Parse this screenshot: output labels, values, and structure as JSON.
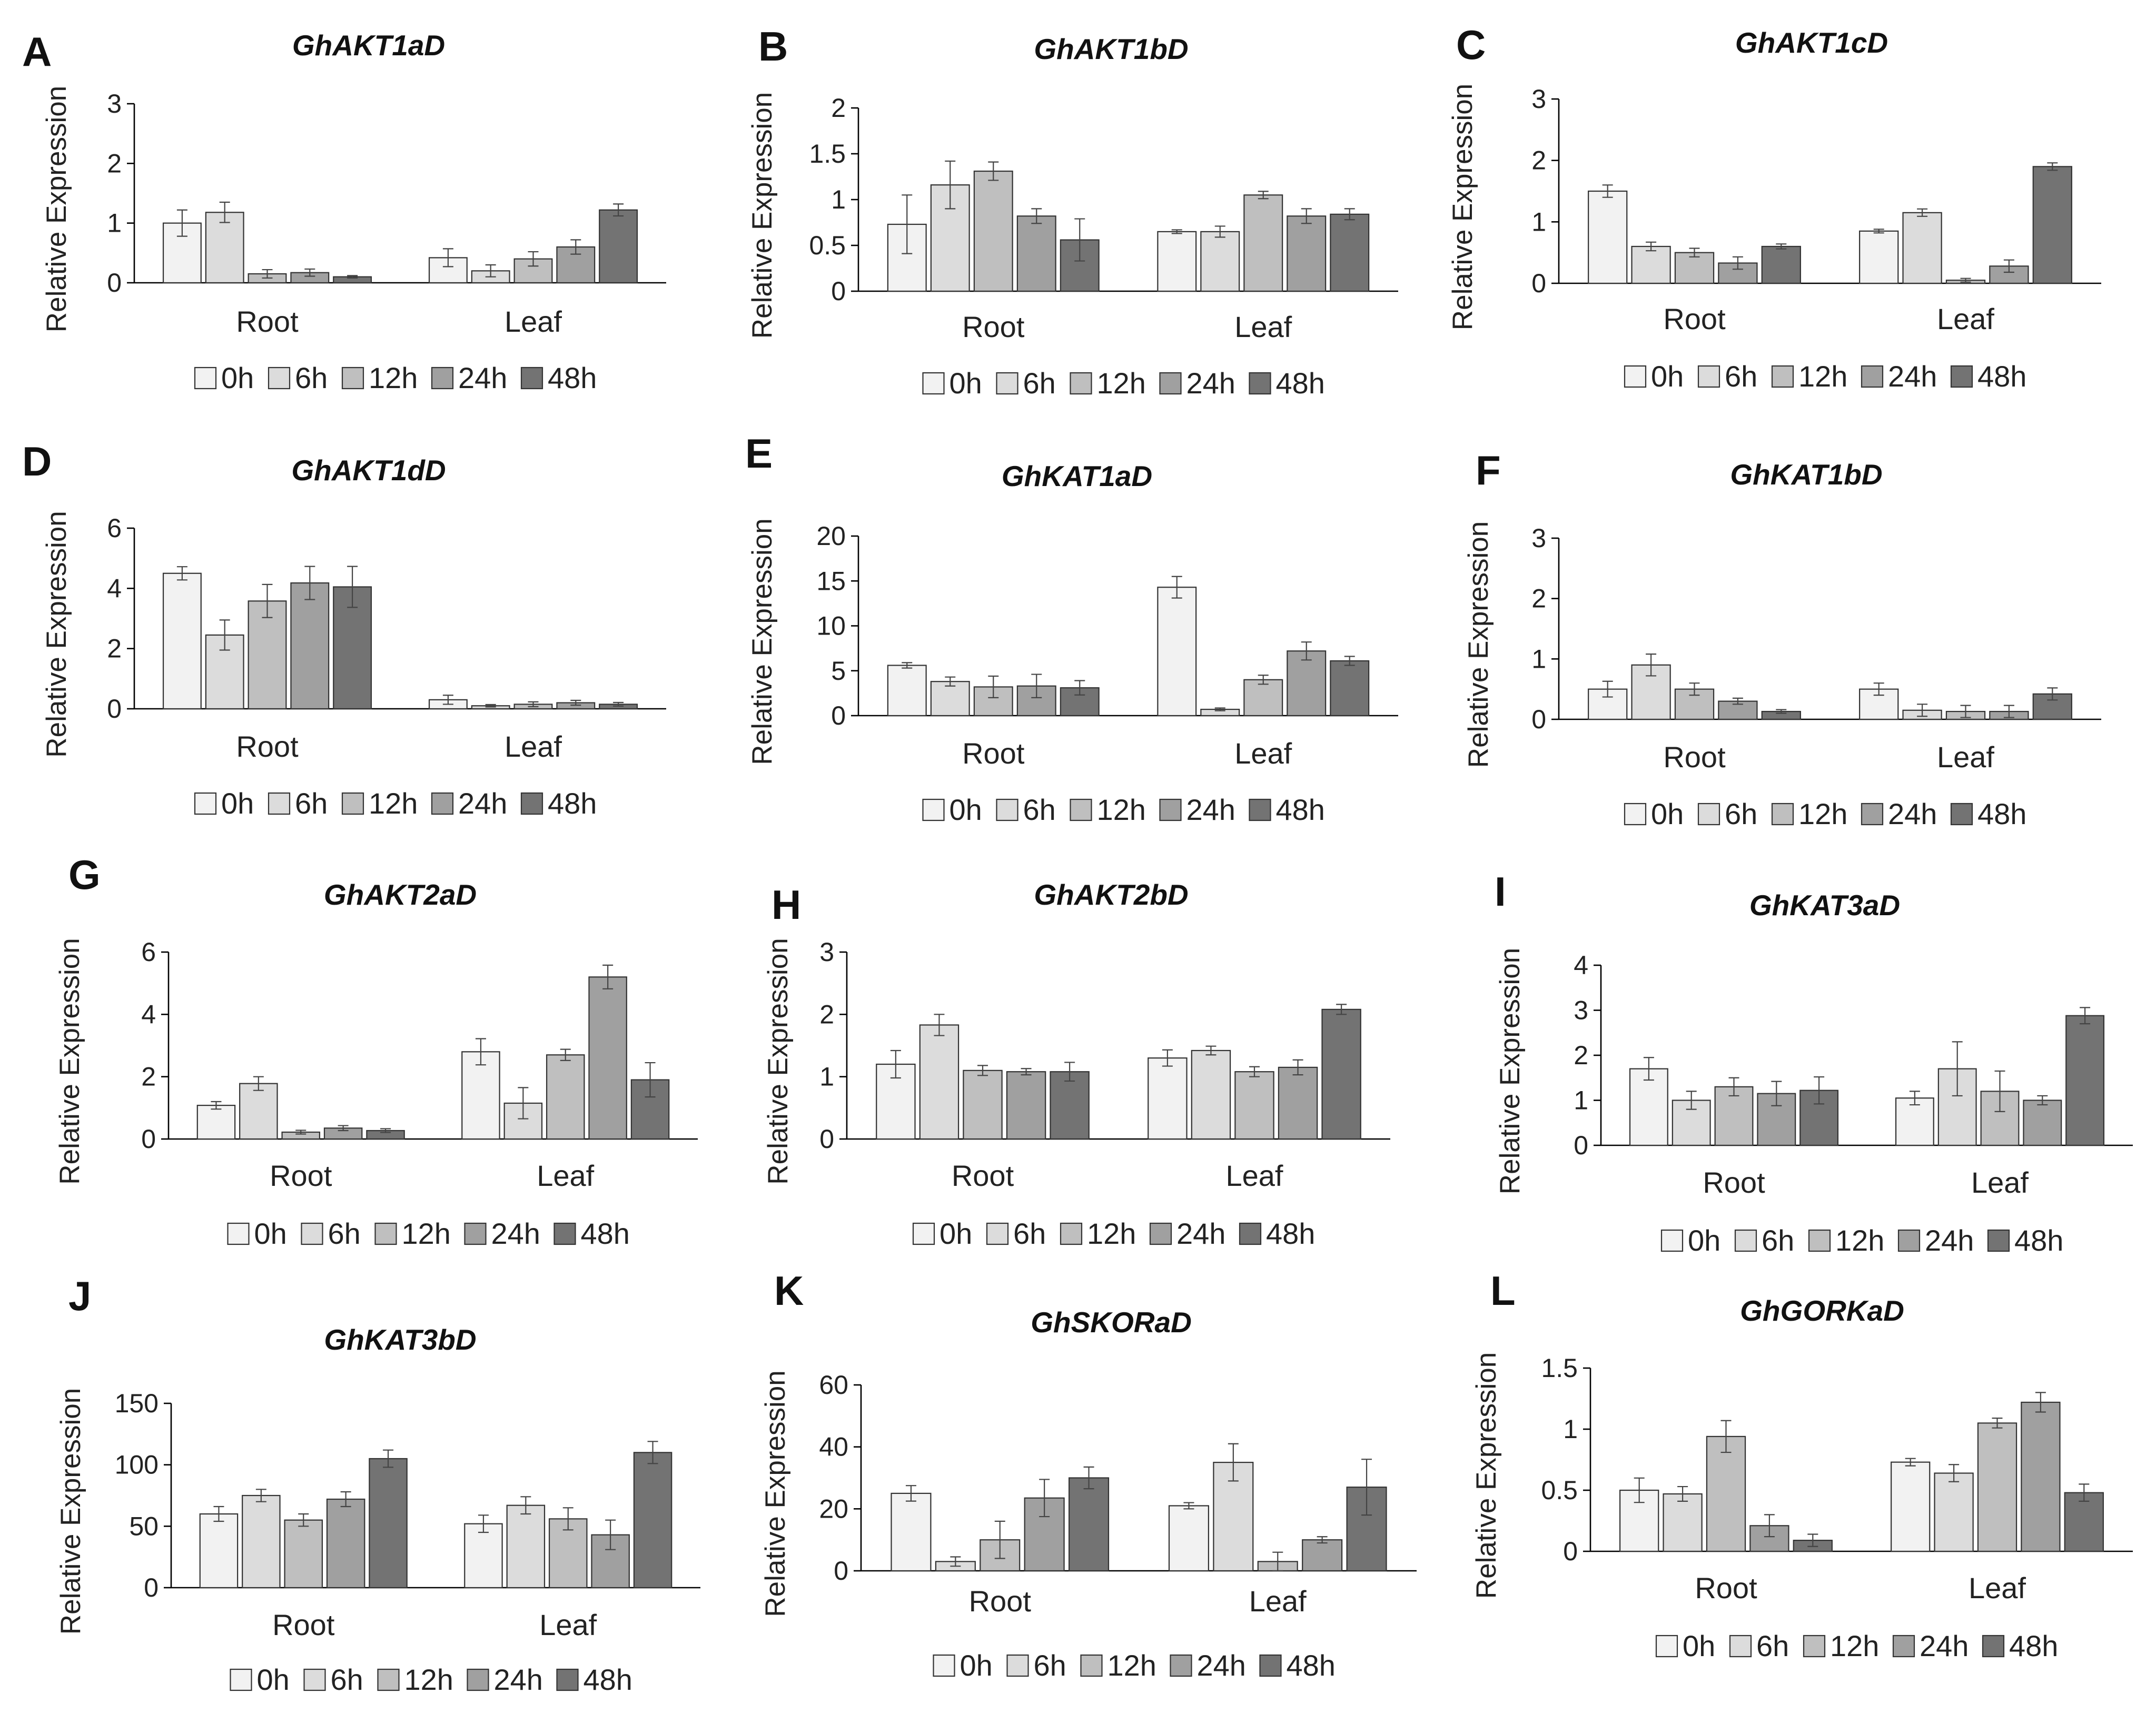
{
  "legend": [
    "0h",
    "6h",
    "12h",
    "24h",
    "48h"
  ],
  "colors": {
    "series": [
      "#f2f2f2",
      "#dcdcdc",
      "#bfbfbf",
      "#a0a0a0",
      "#737373"
    ],
    "stroke": "#333333",
    "axis": "#000000"
  },
  "chart_data": [
    {
      "type": "bar",
      "letter": "A",
      "title": "GhAKT1aD",
      "ylabel": "Relative Expression",
      "ylim": [
        0,
        3
      ],
      "yticks": [
        "0",
        "1",
        "2",
        "3"
      ],
      "categories": [
        "Root",
        "Leaf"
      ],
      "series": [
        {
          "name": "0h",
          "values": [
            1.0,
            0.42
          ],
          "errors": [
            0.22,
            0.15
          ]
        },
        {
          "name": "6h",
          "values": [
            1.18,
            0.2
          ],
          "errors": [
            0.17,
            0.1
          ]
        },
        {
          "name": "12h",
          "values": [
            0.15,
            0.4
          ],
          "errors": [
            0.07,
            0.12
          ]
        },
        {
          "name": "24h",
          "values": [
            0.17,
            0.6
          ],
          "errors": [
            0.06,
            0.12
          ]
        },
        {
          "name": "48h",
          "values": [
            0.1,
            1.22
          ],
          "errors": [
            0.02,
            0.1
          ]
        }
      ]
    },
    {
      "type": "bar",
      "letter": "B",
      "title": "GhAKT1bD",
      "ylabel": "Relative Expression",
      "ylim": [
        0,
        2
      ],
      "yticks": [
        "0",
        "0.5",
        "1",
        "1.5",
        "2"
      ],
      "categories": [
        "Root",
        "Leaf"
      ],
      "series": [
        {
          "name": "0h",
          "values": [
            0.73,
            0.65
          ],
          "errors": [
            0.32,
            0.02
          ]
        },
        {
          "name": "6h",
          "values": [
            1.16,
            0.65
          ],
          "errors": [
            0.26,
            0.06
          ]
        },
        {
          "name": "12h",
          "values": [
            1.31,
            1.05
          ],
          "errors": [
            0.1,
            0.04
          ]
        },
        {
          "name": "24h",
          "values": [
            0.82,
            0.82
          ],
          "errors": [
            0.08,
            0.08
          ]
        },
        {
          "name": "48h",
          "values": [
            0.56,
            0.84
          ],
          "errors": [
            0.23,
            0.06
          ]
        }
      ]
    },
    {
      "type": "bar",
      "letter": "C",
      "title": "GhAKT1cD",
      "ylabel": "Relative Expression",
      "ylim": [
        0,
        3
      ],
      "yticks": [
        "0",
        "1",
        "2",
        "3"
      ],
      "categories": [
        "Root",
        "Leaf"
      ],
      "series": [
        {
          "name": "0h",
          "values": [
            1.5,
            0.85
          ],
          "errors": [
            0.1,
            0.03
          ]
        },
        {
          "name": "6h",
          "values": [
            0.6,
            1.15
          ],
          "errors": [
            0.07,
            0.06
          ]
        },
        {
          "name": "12h",
          "values": [
            0.5,
            0.05
          ],
          "errors": [
            0.07,
            0.03
          ]
        },
        {
          "name": "24h",
          "values": [
            0.33,
            0.28
          ],
          "errors": [
            0.1,
            0.1
          ]
        },
        {
          "name": "48h",
          "values": [
            0.6,
            1.9
          ],
          "errors": [
            0.04,
            0.06
          ]
        }
      ]
    },
    {
      "type": "bar",
      "letter": "D",
      "title": "GhAKT1dD",
      "ylabel": "Relative Expression",
      "ylim": [
        0,
        6
      ],
      "yticks": [
        "0",
        "2",
        "4",
        "6"
      ],
      "categories": [
        "Root",
        "Leaf"
      ],
      "series": [
        {
          "name": "0h",
          "values": [
            4.5,
            0.3
          ],
          "errors": [
            0.22,
            0.15
          ]
        },
        {
          "name": "6h",
          "values": [
            2.45,
            0.1
          ],
          "errors": [
            0.5,
            0.04
          ]
        },
        {
          "name": "12h",
          "values": [
            3.58,
            0.15
          ],
          "errors": [
            0.55,
            0.08
          ]
        },
        {
          "name": "24h",
          "values": [
            4.18,
            0.2
          ],
          "errors": [
            0.55,
            0.08
          ]
        },
        {
          "name": "48h",
          "values": [
            4.05,
            0.15
          ],
          "errors": [
            0.68,
            0.06
          ]
        }
      ]
    },
    {
      "type": "bar",
      "letter": "E",
      "title": "GhKAT1aD",
      "ylabel": "Relative Expression",
      "ylim": [
        0,
        20
      ],
      "yticks": [
        "0",
        "5",
        "10",
        "15",
        "20"
      ],
      "categories": [
        "Root",
        "Leaf"
      ],
      "series": [
        {
          "name": "0h",
          "values": [
            5.6,
            14.3
          ],
          "errors": [
            0.3,
            1.2
          ]
        },
        {
          "name": "6h",
          "values": [
            3.8,
            0.7
          ],
          "errors": [
            0.5,
            0.15
          ]
        },
        {
          "name": "12h",
          "values": [
            3.2,
            4.0
          ],
          "errors": [
            1.2,
            0.5
          ]
        },
        {
          "name": "24h",
          "values": [
            3.3,
            7.2
          ],
          "errors": [
            1.3,
            1.0
          ]
        },
        {
          "name": "48h",
          "values": [
            3.1,
            6.1
          ],
          "errors": [
            0.8,
            0.5
          ]
        }
      ]
    },
    {
      "type": "bar",
      "letter": "F",
      "title": "GhKAT1bD",
      "ylabel": "Relative Expression",
      "ylim": [
        0,
        3
      ],
      "yticks": [
        "0",
        "1",
        "2",
        "3"
      ],
      "categories": [
        "Root",
        "Leaf"
      ],
      "series": [
        {
          "name": "0h",
          "values": [
            0.5,
            0.5
          ],
          "errors": [
            0.13,
            0.1
          ]
        },
        {
          "name": "6h",
          "values": [
            0.9,
            0.15
          ],
          "errors": [
            0.18,
            0.1
          ]
        },
        {
          "name": "12h",
          "values": [
            0.5,
            0.13
          ],
          "errors": [
            0.1,
            0.1
          ]
        },
        {
          "name": "24h",
          "values": [
            0.3,
            0.13
          ],
          "errors": [
            0.05,
            0.1
          ]
        },
        {
          "name": "48h",
          "values": [
            0.13,
            0.42
          ],
          "errors": [
            0.03,
            0.1
          ]
        }
      ]
    },
    {
      "type": "bar",
      "letter": "G",
      "title": "GhAKT2aD",
      "ylabel": "Relative Expression",
      "ylim": [
        0,
        6
      ],
      "yticks": [
        "0",
        "2",
        "4",
        "6"
      ],
      "categories": [
        "Root",
        "Leaf"
      ],
      "series": [
        {
          "name": "0h",
          "values": [
            1.08,
            2.8
          ],
          "errors": [
            0.12,
            0.42
          ]
        },
        {
          "name": "6h",
          "values": [
            1.78,
            1.15
          ],
          "errors": [
            0.22,
            0.5
          ]
        },
        {
          "name": "12h",
          "values": [
            0.22,
            2.7
          ],
          "errors": [
            0.06,
            0.18
          ]
        },
        {
          "name": "24h",
          "values": [
            0.35,
            5.2
          ],
          "errors": [
            0.08,
            0.38
          ]
        },
        {
          "name": "48h",
          "values": [
            0.27,
            1.9
          ],
          "errors": [
            0.06,
            0.55
          ]
        }
      ]
    },
    {
      "type": "bar",
      "letter": "H",
      "title": "GhAKT2bD",
      "ylabel": "Relative Expression",
      "ylim": [
        0,
        3
      ],
      "yticks": [
        "0",
        "1",
        "2",
        "3"
      ],
      "categories": [
        "Root",
        "Leaf"
      ],
      "series": [
        {
          "name": "0h",
          "values": [
            1.2,
            1.3
          ],
          "errors": [
            0.22,
            0.13
          ]
        },
        {
          "name": "6h",
          "values": [
            1.83,
            1.42
          ],
          "errors": [
            0.17,
            0.07
          ]
        },
        {
          "name": "12h",
          "values": [
            1.1,
            1.08
          ],
          "errors": [
            0.08,
            0.08
          ]
        },
        {
          "name": "24h",
          "values": [
            1.08,
            1.15
          ],
          "errors": [
            0.05,
            0.12
          ]
        },
        {
          "name": "48h",
          "values": [
            1.08,
            2.08
          ],
          "errors": [
            0.15,
            0.08
          ]
        }
      ]
    },
    {
      "type": "bar",
      "letter": "I",
      "title": "GhKAT3aD",
      "ylabel": "Relative Expression",
      "ylim": [
        0,
        4
      ],
      "yticks": [
        "0",
        "1",
        "2",
        "3",
        "4"
      ],
      "categories": [
        "Root",
        "Leaf"
      ],
      "series": [
        {
          "name": "0h",
          "values": [
            1.7,
            1.05
          ],
          "errors": [
            0.25,
            0.15
          ]
        },
        {
          "name": "6h",
          "values": [
            1.0,
            1.7
          ],
          "errors": [
            0.2,
            0.6
          ]
        },
        {
          "name": "12h",
          "values": [
            1.3,
            1.2
          ],
          "errors": [
            0.2,
            0.45
          ]
        },
        {
          "name": "24h",
          "values": [
            1.15,
            1.0
          ],
          "errors": [
            0.27,
            0.1
          ]
        },
        {
          "name": "48h",
          "values": [
            1.22,
            2.88
          ],
          "errors": [
            0.3,
            0.18
          ]
        }
      ]
    },
    {
      "type": "bar",
      "letter": "J",
      "title": "GhKAT3bD",
      "ylabel": "Relative Expression",
      "ylim": [
        0,
        150
      ],
      "yticks": [
        "0",
        "50",
        "100",
        "150"
      ],
      "categories": [
        "Root",
        "Leaf"
      ],
      "series": [
        {
          "name": "0h",
          "values": [
            60,
            52
          ],
          "errors": [
            6,
            7
          ]
        },
        {
          "name": "6h",
          "values": [
            75,
            67
          ],
          "errors": [
            5,
            7
          ]
        },
        {
          "name": "12h",
          "values": [
            55,
            56
          ],
          "errors": [
            5,
            9
          ]
        },
        {
          "name": "24h",
          "values": [
            72,
            43
          ],
          "errors": [
            6,
            12
          ]
        },
        {
          "name": "48h",
          "values": [
            105,
            110
          ],
          "errors": [
            7,
            9
          ]
        }
      ]
    },
    {
      "type": "bar",
      "letter": "K",
      "title": "GhSKORaD",
      "ylabel": "Relative Expression",
      "ylim": [
        0,
        60
      ],
      "yticks": [
        "0",
        "20",
        "40",
        "60"
      ],
      "categories": [
        "Root",
        "Leaf"
      ],
      "series": [
        {
          "name": "0h",
          "values": [
            25,
            21
          ],
          "errors": [
            2.5,
            1
          ]
        },
        {
          "name": "6h",
          "values": [
            3,
            35
          ],
          "errors": [
            1.5,
            6
          ]
        },
        {
          "name": "12h",
          "values": [
            10,
            3
          ],
          "errors": [
            6,
            3
          ]
        },
        {
          "name": "24h",
          "values": [
            23.5,
            10
          ],
          "errors": [
            6,
            1
          ]
        },
        {
          "name": "48h",
          "values": [
            30,
            27
          ],
          "errors": [
            3.5,
            9
          ]
        }
      ]
    },
    {
      "type": "bar",
      "letter": "L",
      "title": "GhGORKaD",
      "ylabel": "Relative Expression",
      "ylim": [
        0,
        1.5
      ],
      "yticks": [
        "0",
        "0.5",
        "1",
        "1.5"
      ],
      "categories": [
        "Root",
        "Leaf"
      ],
      "series": [
        {
          "name": "0h",
          "values": [
            0.5,
            0.73
          ],
          "errors": [
            0.1,
            0.03
          ]
        },
        {
          "name": "6h",
          "values": [
            0.47,
            0.64
          ],
          "errors": [
            0.06,
            0.07
          ]
        },
        {
          "name": "12h",
          "values": [
            0.94,
            1.05
          ],
          "errors": [
            0.13,
            0.04
          ]
        },
        {
          "name": "24h",
          "values": [
            0.21,
            1.22
          ],
          "errors": [
            0.09,
            0.08
          ]
        },
        {
          "name": "48h",
          "values": [
            0.09,
            0.48
          ],
          "errors": [
            0.05,
            0.07
          ]
        }
      ]
    }
  ]
}
